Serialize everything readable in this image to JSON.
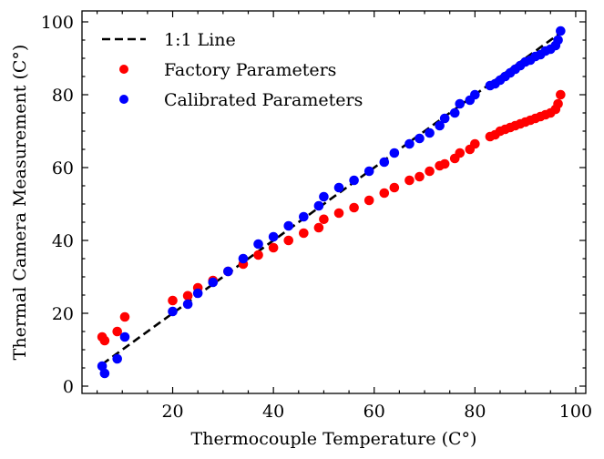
{
  "chart_data": {
    "type": "scatter",
    "title": "",
    "xlabel": "Thermocouple Temperature (C°)",
    "ylabel": "Thermal Camera Measurement (C°)",
    "xlim": [
      2,
      102
    ],
    "ylim": [
      -2,
      103
    ],
    "xticks": [
      20,
      40,
      60,
      80,
      100
    ],
    "yticks": [
      0,
      20,
      40,
      60,
      80,
      100
    ],
    "grid": false,
    "legend_position": "top-left",
    "reference_line": {
      "name": "1:1 Line",
      "style": "dashed",
      "color": "#000000",
      "x": [
        6,
        97
      ],
      "y": [
        6,
        97
      ]
    },
    "series": [
      {
        "name": "Factory Parameters",
        "color": "#ff0000",
        "points": [
          [
            6,
            13.5
          ],
          [
            6.5,
            12.5
          ],
          [
            9,
            15
          ],
          [
            10.5,
            19
          ],
          [
            20,
            23.5
          ],
          [
            23,
            24.8
          ],
          [
            25,
            27
          ],
          [
            28,
            29
          ],
          [
            31,
            31.5
          ],
          [
            34,
            33.5
          ],
          [
            37,
            36
          ],
          [
            40,
            38
          ],
          [
            43,
            40
          ],
          [
            46,
            42
          ],
          [
            49,
            43.5
          ],
          [
            50,
            45.8
          ],
          [
            53,
            47.5
          ],
          [
            56,
            49
          ],
          [
            59,
            51
          ],
          [
            62,
            53
          ],
          [
            64,
            54.5
          ],
          [
            67,
            56.5
          ],
          [
            69,
            57.5
          ],
          [
            71,
            59
          ],
          [
            73,
            60.5
          ],
          [
            74,
            61
          ],
          [
            76,
            62.5
          ],
          [
            77,
            64
          ],
          [
            79,
            65
          ],
          [
            80,
            66.5
          ],
          [
            83,
            68.5
          ],
          [
            84,
            69
          ],
          [
            85,
            70
          ],
          [
            86,
            70.5
          ],
          [
            87,
            71
          ],
          [
            88,
            71.5
          ],
          [
            89,
            72
          ],
          [
            90,
            72.5
          ],
          [
            91,
            73
          ],
          [
            92,
            73.5
          ],
          [
            93,
            74
          ],
          [
            94,
            74.5
          ],
          [
            95,
            75
          ],
          [
            96,
            76
          ],
          [
            96.5,
            77.5
          ],
          [
            97,
            80
          ]
        ]
      },
      {
        "name": "Calibrated Parameters",
        "color": "#0000ff",
        "points": [
          [
            6,
            5.5
          ],
          [
            6.5,
            3.5
          ],
          [
            9,
            7.5
          ],
          [
            10.5,
            13.5
          ],
          [
            20,
            20.5
          ],
          [
            23,
            22.5
          ],
          [
            25,
            25.5
          ],
          [
            28,
            28.5
          ],
          [
            31,
            31.5
          ],
          [
            34,
            35
          ],
          [
            37,
            39
          ],
          [
            40,
            41
          ],
          [
            43,
            44
          ],
          [
            46,
            46.5
          ],
          [
            49,
            49.5
          ],
          [
            50,
            52
          ],
          [
            53,
            54.5
          ],
          [
            56,
            56.5
          ],
          [
            59,
            59
          ],
          [
            62,
            61.5
          ],
          [
            64,
            64
          ],
          [
            67,
            66.5
          ],
          [
            69,
            68
          ],
          [
            71,
            69.5
          ],
          [
            73,
            71.5
          ],
          [
            74,
            73.5
          ],
          [
            76,
            75
          ],
          [
            77,
            77.5
          ],
          [
            79,
            78.5
          ],
          [
            80,
            80
          ],
          [
            83,
            82.5
          ],
          [
            84,
            83
          ],
          [
            85,
            84
          ],
          [
            86,
            85
          ],
          [
            87,
            86
          ],
          [
            88,
            87
          ],
          [
            89,
            88
          ],
          [
            90,
            89
          ],
          [
            91,
            89.5
          ],
          [
            92,
            90.5
          ],
          [
            93,
            91
          ],
          [
            94,
            92
          ],
          [
            95,
            92.5
          ],
          [
            96,
            93.5
          ],
          [
            96.5,
            95
          ],
          [
            97,
            97.5
          ]
        ]
      }
    ]
  }
}
